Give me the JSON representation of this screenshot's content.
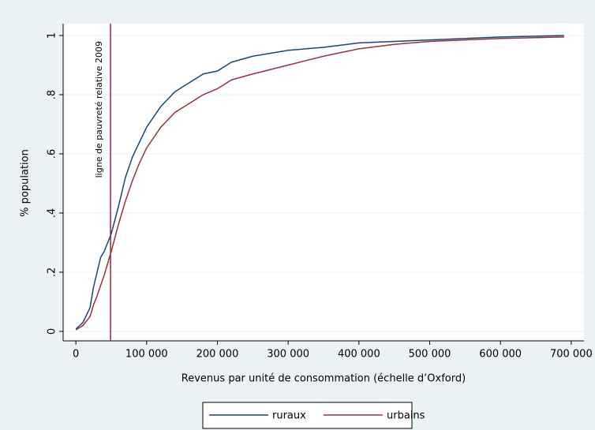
{
  "chart_data": {
    "type": "line",
    "ylabel": "% population",
    "xlabel": "Revenus par unité de consommation (échelle d’Oxford)",
    "annotation": "ligne de pauvreté relative 2009",
    "vline": 49000,
    "vline_color": "#a0203c",
    "x": [
      0,
      10000,
      20000,
      25000,
      30000,
      35000,
      40000,
      45000,
      50000,
      60000,
      70000,
      80000,
      90000,
      100000,
      120000,
      140000,
      160000,
      180000,
      200000,
      220000,
      250000,
      300000,
      350000,
      400000,
      450000,
      500000,
      600000,
      690000
    ],
    "series": [
      {
        "name": "ruraux",
        "color": "#1a476f",
        "values": [
          0.008,
          0.03,
          0.08,
          0.15,
          0.2,
          0.25,
          0.27,
          0.3,
          0.33,
          0.42,
          0.52,
          0.59,
          0.64,
          0.69,
          0.76,
          0.81,
          0.84,
          0.87,
          0.88,
          0.91,
          0.93,
          0.95,
          0.96,
          0.975,
          0.98,
          0.985,
          0.995,
          1.0
        ]
      },
      {
        "name": "urbains",
        "color": "#90353b",
        "values": [
          0.005,
          0.02,
          0.05,
          0.09,
          0.12,
          0.155,
          0.19,
          0.23,
          0.27,
          0.36,
          0.44,
          0.51,
          0.57,
          0.62,
          0.69,
          0.74,
          0.77,
          0.8,
          0.82,
          0.85,
          0.87,
          0.9,
          0.93,
          0.955,
          0.97,
          0.98,
          0.99,
          0.995
        ]
      }
    ],
    "xlim": [
      -18000,
      718000
    ],
    "ylim": [
      -0.032,
      1.04
    ],
    "xticks": [
      0,
      {
        "value": 100000,
        "label": "100 000"
      },
      {
        "value": 200000,
        "label": "200 000"
      },
      {
        "value": 300000,
        "label": "300 000"
      },
      {
        "value": 400000,
        "label": "400 000"
      },
      {
        "value": 500000,
        "label": "500 000"
      },
      {
        "value": 600000,
        "label": "600 000"
      },
      {
        "value": 700000,
        "label": "700 000"
      }
    ],
    "yticks": [
      0,
      {
        "value": 0.2,
        "label": ".2"
      },
      {
        "value": 0.4,
        "label": ".4"
      },
      {
        "value": 0.6,
        "label": ".6"
      },
      {
        "value": 0.8,
        "label": ".8"
      },
      1
    ],
    "grid": true
  }
}
